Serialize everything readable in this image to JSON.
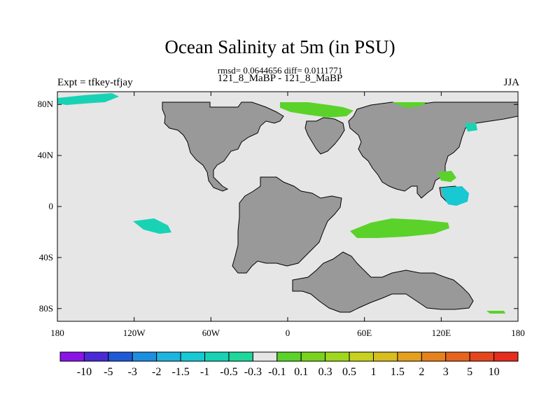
{
  "title": "Ocean Salinity at 5m (in PSU)",
  "stats": "rmsd= 0.0644656 diff= 0.0111771",
  "subtitle": "121_8_MaBP - 121_8_MaBP",
  "left_label": "Expt = tfkey-tfjay",
  "right_label": "JJA",
  "colors": {
    "ocean": "#e6e6e6",
    "land": "#999999"
  },
  "x_ticks": [
    "180",
    "120W",
    "60W",
    "0",
    "60E",
    "120E",
    "180"
  ],
  "y_ticks": [
    "80N",
    "40N",
    "0",
    "40S",
    "80S"
  ],
  "colorbar": {
    "colors": [
      "#8a14e6",
      "#4a2ad6",
      "#1e5ad8",
      "#1e8ee0",
      "#1eb4e0",
      "#18c8d2",
      "#18d2b4",
      "#1ed79a",
      "#e6e6e6",
      "#5ad22a",
      "#78d21e",
      "#a0d71e",
      "#c8d21e",
      "#d7be1e",
      "#e6a01e",
      "#e6821e",
      "#e6641e",
      "#e6461e",
      "#e62d1e"
    ],
    "labels": [
      "-10",
      "-5",
      "-3",
      "-2",
      "-1.5",
      "-1",
      "-0.5",
      "-0.3",
      "-0.1",
      "0.1",
      "0.3",
      "0.5",
      "1",
      "1.5",
      "2",
      "3",
      "5",
      "10"
    ]
  }
}
